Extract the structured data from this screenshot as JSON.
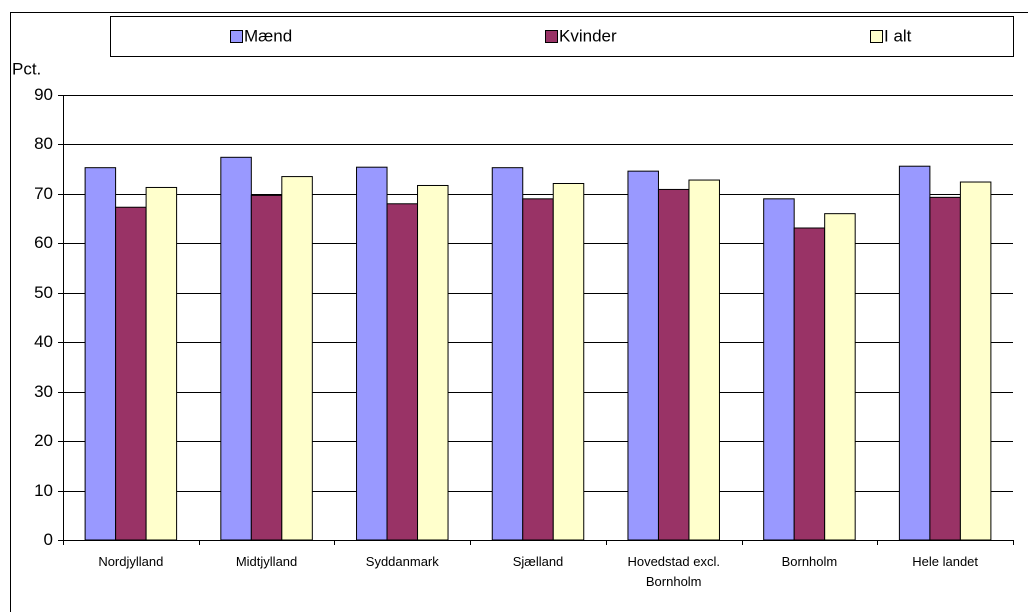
{
  "chart_data": {
    "type": "bar",
    "y_label": "Pct.",
    "categories": [
      "Nordjylland",
      "Midtjylland",
      "Syddanmark",
      "Sjælland",
      "Hovedstad excl. Bornholm",
      "Bornholm",
      "Hele landet"
    ],
    "series": [
      {
        "name": "Mænd",
        "color": "#9999ff",
        "values": [
          75.3,
          77.4,
          75.4,
          75.3,
          74.6,
          69.0,
          75.6
        ]
      },
      {
        "name": "Kvinder",
        "color": "#993366",
        "values": [
          67.3,
          69.7,
          68.0,
          69.0,
          70.9,
          63.1,
          69.3
        ]
      },
      {
        "name": "I alt",
        "color": "#ffffcc",
        "values": [
          71.3,
          73.5,
          71.7,
          72.1,
          72.8,
          66.0,
          72.4
        ]
      }
    ],
    "ylim": [
      0,
      90
    ],
    "yticks": [
      0,
      10,
      20,
      30,
      40,
      50,
      60,
      70,
      80,
      90
    ],
    "grid": true,
    "legend": "top"
  }
}
